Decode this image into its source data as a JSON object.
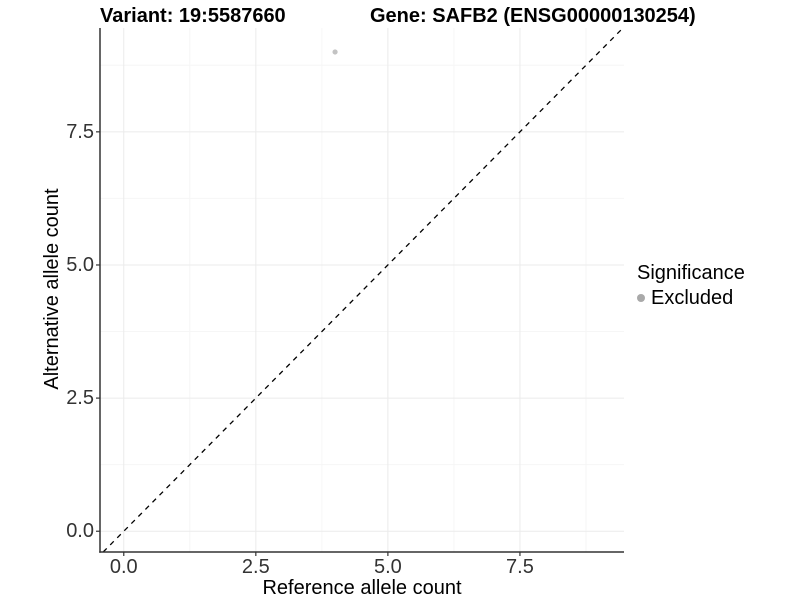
{
  "header": {
    "variant_title": "Variant: 19:5587660",
    "gene_title": "Gene: SAFB2 (ENSG00000130254)"
  },
  "chart_data": {
    "type": "scatter",
    "xlabel": "Reference allele count",
    "ylabel": "Alternative allele count",
    "xlim": [
      -0.45,
      9.47
    ],
    "ylim": [
      -0.39,
      9.45
    ],
    "xticks": {
      "values": [
        0,
        2.5,
        5,
        7.5
      ],
      "labels": [
        "0.0",
        "2.5",
        "5.0",
        "7.5"
      ]
    },
    "yticks": {
      "values": [
        0,
        2.5,
        5,
        7.5
      ],
      "labels": [
        "0.0",
        "2.5",
        "5.0",
        "7.5"
      ]
    },
    "xminor": [
      1.25,
      3.75,
      6.25,
      8.75
    ],
    "yminor": [
      1.25,
      3.75,
      6.25,
      8.75
    ],
    "grid": "major+minor",
    "points": [
      {
        "x": 4,
        "y": 9,
        "series": "Excluded"
      }
    ],
    "point_style": {
      "color": "#c3c3c3",
      "radius": 2.6
    },
    "identity_line": {
      "slope": 1,
      "intercept": 0,
      "style": "dashed",
      "color": "#000000"
    },
    "legend": {
      "title": "Significance",
      "position": "right",
      "entries": [
        {
          "label": "Excluded",
          "color": "#a9a9a9",
          "marker": "circle"
        }
      ]
    }
  },
  "theme": {
    "background": "#ffffff",
    "grid_major_color": "#ebebeb",
    "grid_minor_color": "#f6f6f6",
    "axis_line_color": "#333333",
    "tick_mark_color": "#333333",
    "tick_text_color": "#333333",
    "title_text_color": "#000000"
  }
}
